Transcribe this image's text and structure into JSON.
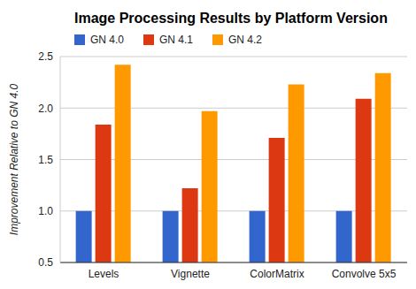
{
  "chart_data": {
    "type": "bar",
    "title": "Image Processing Results by Platform Version",
    "y_label": "Improvement Relative to GN 4.0",
    "categories": [
      "Levels",
      "Vignette",
      "ColorMatrix",
      "Convolve 5x5"
    ],
    "series": [
      {
        "name": "GN 4.0",
        "color": "#3366cc",
        "values": [
          1.0,
          1.0,
          1.0,
          1.0
        ]
      },
      {
        "name": "GN 4.1",
        "color": "#dc3912",
        "values": [
          1.84,
          1.22,
          1.71,
          2.09
        ]
      },
      {
        "name": "GN 4.2",
        "color": "#ff9900",
        "values": [
          2.42,
          1.97,
          2.23,
          2.34
        ]
      }
    ],
    "ylim": [
      0.5,
      2.5
    ],
    "yticks": [
      0.5,
      {
        "value": 1.0,
        "label": "1.0"
      },
      1.5,
      {
        "value": 2.0,
        "label": "2.0"
      },
      2.5
    ],
    "grid": true,
    "legend": "top-left"
  }
}
